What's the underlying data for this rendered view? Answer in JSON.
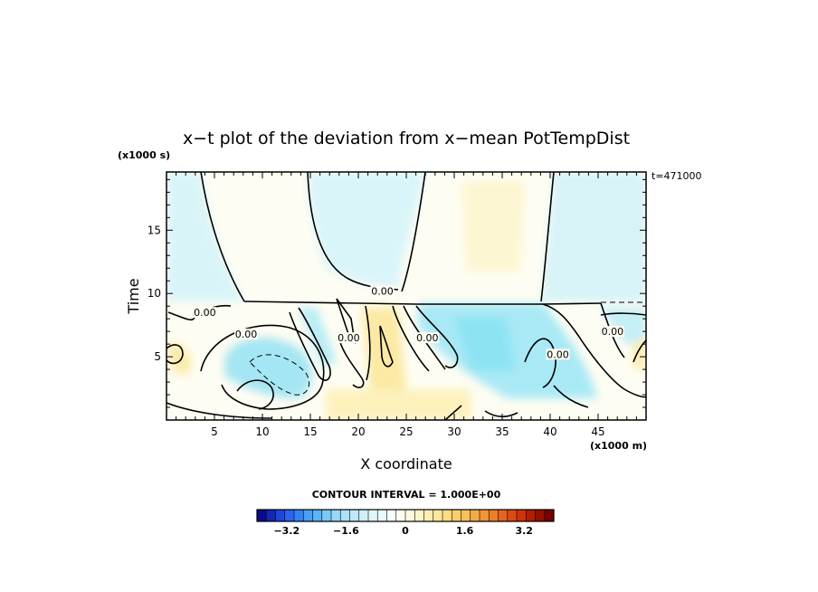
{
  "chart_data": {
    "type": "heatmap",
    "title": "x−t plot of the deviation from x−mean PotTempDist",
    "y_scale_label": "(x1000 s)",
    "x_scale_label": "(x1000 m)",
    "time_annotation": "t=471000",
    "xlabel": "X coordinate",
    "ylabel": "Time",
    "xlim": [
      0,
      50
    ],
    "ylim": [
      0,
      19.6
    ],
    "x_tick_labels": [
      "5",
      "10",
      "15",
      "20",
      "25",
      "30",
      "35",
      "40",
      "45"
    ],
    "x_ticks": [
      5,
      10,
      15,
      20,
      25,
      30,
      35,
      40,
      45
    ],
    "y_tick_labels": [
      "5",
      "10",
      "15"
    ],
    "y_ticks": [
      5,
      10,
      15
    ],
    "contour_interval_text": "CONTOUR INTERVAL = 1.000E+00",
    "contour_labels": [
      {
        "text": "0.00",
        "x": 22.5,
        "y": 10.2
      },
      {
        "text": "0.00",
        "x": 4.0,
        "y": 8.5
      },
      {
        "text": "0.00",
        "x": 8.3,
        "y": 6.8
      },
      {
        "text": "0.00",
        "x": 19.0,
        "y": 6.5
      },
      {
        "text": "0.00",
        "x": 27.2,
        "y": 6.5
      },
      {
        "text": "0.00",
        "x": 40.8,
        "y": 5.2
      },
      {
        "text": "0.00",
        "x": 46.5,
        "y": 7.0
      }
    ],
    "colorbar": {
      "range": [
        -4.0,
        4.0
      ],
      "tick_values": [
        -3.2,
        -1.6,
        0,
        1.6,
        3.2
      ],
      "tick_labels": [
        "−3.2",
        "−1.6",
        "0",
        "1.6",
        "3.2"
      ],
      "colors": [
        "#0a0a8c",
        "#1428b4",
        "#1e46dc",
        "#2864f0",
        "#3282f5",
        "#46a0f5",
        "#5ab4f5",
        "#78c8f5",
        "#96d7f7",
        "#aae1f8",
        "#bee8f8",
        "#cfeff8",
        "#dff5f9",
        "#ecf9fa",
        "#f7fcfb",
        "#fdfcf0",
        "#fdf9dc",
        "#fdf5c8",
        "#fcefb0",
        "#fce898",
        "#fbdd82",
        "#f9cf6e",
        "#f7c05a",
        "#f4ab46",
        "#f09632",
        "#ec7e28",
        "#e6641e",
        "#dc4a14",
        "#d2320a",
        "#b41e05",
        "#960f00",
        "#780000"
      ]
    },
    "grid": false
  }
}
